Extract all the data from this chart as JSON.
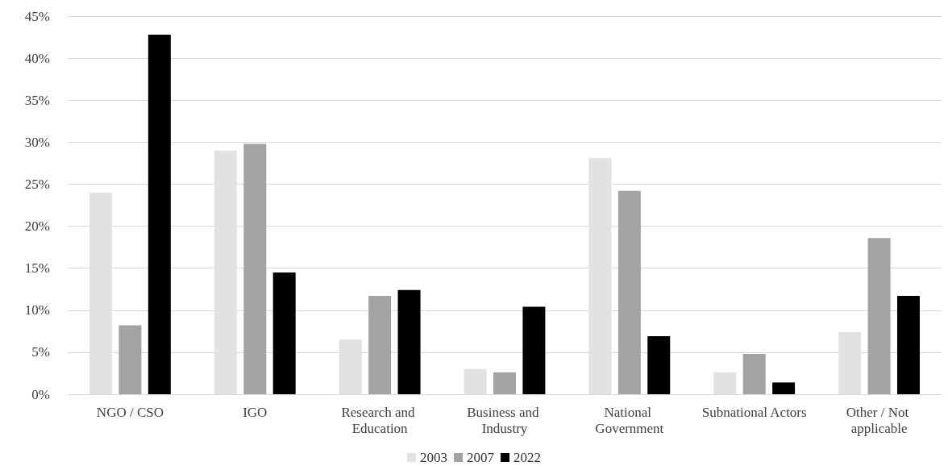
{
  "chart_data": {
    "type": "bar",
    "categories": [
      "NGO / CSO",
      "IGO",
      "Research and Education",
      "Business and Industry",
      "National Government",
      "Subnational Actors",
      "Other / Not applicable"
    ],
    "series": [
      {
        "name": "2003",
        "color": "#e2e2e2",
        "values": [
          24,
          29,
          6.5,
          3.0,
          28.1,
          2.6,
          7.4
        ]
      },
      {
        "name": "2007",
        "color": "#a3a3a3",
        "values": [
          8.2,
          29.8,
          11.7,
          2.6,
          24.2,
          4.8,
          18.6
        ]
      },
      {
        "name": "2022",
        "color": "#000000",
        "values": [
          42.8,
          14.5,
          12.4,
          10.4,
          6.9,
          1.4,
          11.7
        ]
      }
    ],
    "ylim": [
      0,
      45
    ],
    "yticks": [
      {
        "value": 0,
        "label": "0%"
      },
      {
        "value": 5,
        "label": "5%"
      },
      {
        "value": 10,
        "label": "10%"
      },
      {
        "value": 15,
        "label": "15%"
      },
      {
        "value": 20,
        "label": "20%"
      },
      {
        "value": 25,
        "label": "25%"
      },
      {
        "value": 30,
        "label": "30%"
      },
      {
        "value": 35,
        "label": "35%"
      },
      {
        "value": 40,
        "label": "40%"
      },
      {
        "value": 45,
        "label": "45%"
      }
    ],
    "grid": "y",
    "legend": "bottom"
  }
}
